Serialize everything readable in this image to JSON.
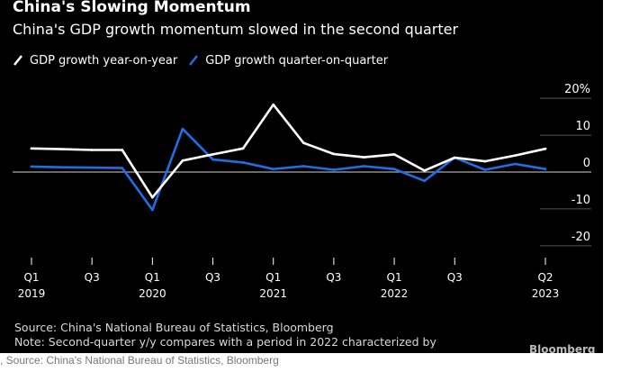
{
  "header": {
    "title": "China's Slowing Momentum",
    "subtitle": "China's GDP growth momentum slowed in the second quarter"
  },
  "legend": [
    {
      "label": "GDP growth year-on-year",
      "color": "#ffffff"
    },
    {
      "label": "GDP growth quarter-on-quarter",
      "color": "#1e6fe6"
    }
  ],
  "footer": {
    "source": "Source: China's National Bureau of Statistics, Bloomberg",
    "note": "Note: Second-quarter y/y compares with a period in 2022 characterized by",
    "brand": "Bloomberg"
  },
  "caption": ", Source: China's National Bureau of Statistics, Bloomberg",
  "chart_data": {
    "type": "line",
    "title": "China's Slowing Momentum",
    "subtitle": "China's GDP growth momentum slowed in the second quarter",
    "x": [
      "2019 Q1",
      "2019 Q2",
      "2019 Q3",
      "2019 Q4",
      "2020 Q1",
      "2020 Q2",
      "2020 Q3",
      "2020 Q4",
      "2021 Q1",
      "2021 Q2",
      "2021 Q3",
      "2021 Q4",
      "2022 Q1",
      "2022 Q2",
      "2022 Q3",
      "2022 Q4",
      "2023 Q1",
      "2023 Q2"
    ],
    "x_tick_labels": [
      {
        "index": 0,
        "line1": "Q1",
        "line2": "2019"
      },
      {
        "index": 2,
        "line1": "Q3",
        "line2": ""
      },
      {
        "index": 4,
        "line1": "Q1",
        "line2": "2020"
      },
      {
        "index": 6,
        "line1": "Q3",
        "line2": ""
      },
      {
        "index": 8,
        "line1": "Q1",
        "line2": "2021"
      },
      {
        "index": 10,
        "line1": "Q3",
        "line2": ""
      },
      {
        "index": 12,
        "line1": "Q1",
        "line2": "2022"
      },
      {
        "index": 14,
        "line1": "Q3",
        "line2": ""
      },
      {
        "index": 17,
        "line1": "Q2",
        "line2": "2023"
      }
    ],
    "series": [
      {
        "name": "GDP growth year-on-year",
        "color": "#ffffff",
        "values": [
          6.4,
          6.2,
          6.0,
          6.0,
          -6.9,
          3.1,
          4.8,
          6.4,
          18.3,
          7.9,
          4.9,
          4.0,
          4.8,
          0.4,
          3.9,
          2.9,
          4.5,
          6.3
        ]
      },
      {
        "name": "GDP growth quarter-on-quarter",
        "color": "#1e6fe6",
        "values": [
          1.5,
          1.3,
          1.2,
          1.1,
          -10.3,
          11.7,
          3.4,
          2.6,
          0.8,
          1.6,
          0.6,
          1.6,
          0.8,
          -2.4,
          3.9,
          0.6,
          2.2,
          0.8
        ]
      }
    ],
    "ylim": [
      -22,
      22
    ],
    "y_ticks": [
      20,
      10,
      0,
      -10,
      -20
    ],
    "y_tick_labels": [
      "20%",
      "10",
      "0",
      "-10",
      "-20"
    ],
    "y_axis_side": "right",
    "gridlines": true,
    "legend_position": "top-left",
    "zero_line_color": "#aaaaaa",
    "grid_color": "#555555"
  }
}
